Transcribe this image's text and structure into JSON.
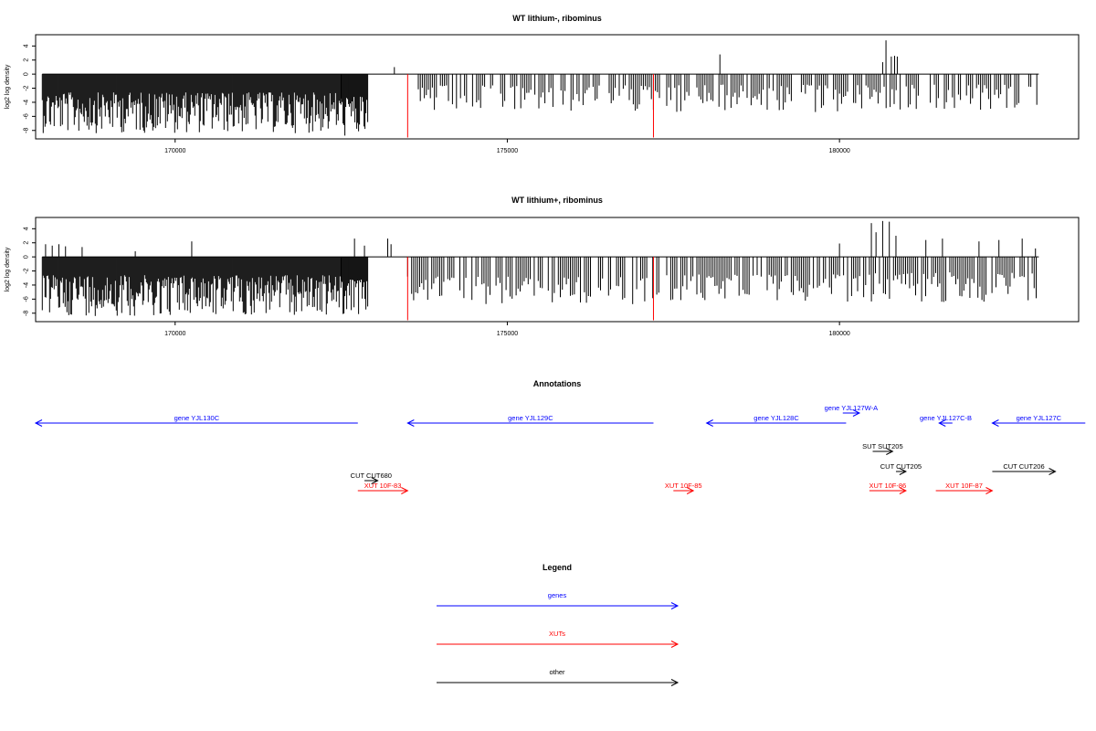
{
  "chart_data": [
    {
      "type": "bar",
      "title": "WT lithium-, ribominus",
      "ylabel": "log2 log density",
      "xlabel": "",
      "xlim": [
        167900,
        183600
      ],
      "ylim": [
        -9.2,
        5.6
      ],
      "x_ticks": [
        170000,
        175000,
        180000
      ],
      "y_ticks": [
        4,
        2,
        0,
        -2,
        -4,
        -6,
        -8
      ],
      "grid": false,
      "series": [
        {
          "color": "#000000",
          "segments": [
            {
              "x0": 168000,
              "x1": 172500,
              "min": -8.4,
              "max": -2.6
            },
            {
              "x0": 172500,
              "x1": 172900,
              "min": -9.0,
              "max": -3.2
            },
            {
              "x0": 173600,
              "x1": 177300,
              "min": -5.4,
              "max": -1.6
            },
            {
              "x0": 177400,
              "x1": 180350,
              "min": -5.6,
              "max": -1.5
            },
            {
              "x0": 180400,
              "x1": 183000,
              "min": -5.2,
              "max": -1.5
            }
          ],
          "values": [
            {
              "x": 173300,
              "y": 1.0
            },
            {
              "x": 178200,
              "y": 2.8
            },
            {
              "x": 180650,
              "y": 1.7
            },
            {
              "x": 180700,
              "y": 4.8
            },
            {
              "x": 180780,
              "y": 2.5
            },
            {
              "x": 180830,
              "y": 2.6
            },
            {
              "x": 180870,
              "y": 2.5
            }
          ]
        },
        {
          "color": "#ff0000",
          "values": [
            {
              "x": 173500,
              "y": -9.0
            },
            {
              "x": 177200,
              "y": -9.0
            }
          ]
        }
      ]
    },
    {
      "type": "bar",
      "title": "WT lithium+, ribominus",
      "ylabel": "log2 log density",
      "xlabel": "",
      "xlim": [
        167900,
        183600
      ],
      "ylim": [
        -9.2,
        5.6
      ],
      "x_ticks": [
        170000,
        175000,
        180000
      ],
      "y_ticks": [
        4,
        2,
        0,
        -2,
        -4,
        -6,
        -8
      ],
      "grid": false,
      "series": [
        {
          "color": "#000000",
          "segments": [
            {
              "x0": 168000,
              "x1": 172500,
              "min": -8.4,
              "max": -2.6
            },
            {
              "x0": 172500,
              "x1": 172900,
              "min": -8.2,
              "max": -3.2
            },
            {
              "x0": 173500,
              "x1": 177300,
              "min": -6.8,
              "max": -2.8
            },
            {
              "x0": 177400,
              "x1": 180400,
              "min": -6.4,
              "max": -2.5
            },
            {
              "x0": 180450,
              "x1": 183000,
              "min": -6.5,
              "max": -2.2
            }
          ],
          "values": [
            {
              "x": 168050,
              "y": 1.8
            },
            {
              "x": 168150,
              "y": 1.6
            },
            {
              "x": 168250,
              "y": 1.8
            },
            {
              "x": 168350,
              "y": 1.5
            },
            {
              "x": 168600,
              "y": 1.4
            },
            {
              "x": 169400,
              "y": 0.8
            },
            {
              "x": 170250,
              "y": 2.2
            },
            {
              "x": 172700,
              "y": 2.6
            },
            {
              "x": 172850,
              "y": 1.6
            },
            {
              "x": 173200,
              "y": 2.6
            },
            {
              "x": 173250,
              "y": 1.8
            },
            {
              "x": 180000,
              "y": 1.9
            },
            {
              "x": 180480,
              "y": 4.8
            },
            {
              "x": 180550,
              "y": 3.5
            },
            {
              "x": 180650,
              "y": 5.1
            },
            {
              "x": 180750,
              "y": 5.0
            },
            {
              "x": 180850,
              "y": 3.0
            },
            {
              "x": 181300,
              "y": 2.4
            },
            {
              "x": 181550,
              "y": 2.6
            },
            {
              "x": 182100,
              "y": 2.2
            },
            {
              "x": 182400,
              "y": 2.4
            },
            {
              "x": 182750,
              "y": 2.6
            },
            {
              "x": 182950,
              "y": 1.2
            }
          ]
        },
        {
          "color": "#ff0000",
          "values": [
            {
              "x": 173500,
              "y": -9.0
            },
            {
              "x": 177200,
              "y": -9.0
            }
          ]
        }
      ]
    }
  ],
  "annotations": {
    "title": "Annotations",
    "items": [
      {
        "label": "gene YJL130C",
        "start": 167370,
        "end": 172750,
        "strand": "-",
        "color": "#0000ff",
        "row": 0
      },
      {
        "label": "gene YJL129C",
        "start": 173500,
        "end": 177200,
        "strand": "-",
        "color": "#0000ff",
        "row": 0
      },
      {
        "label": "gene YJL128C",
        "start": 178000,
        "end": 180100,
        "strand": "-",
        "color": "#0000ff",
        "row": 0
      },
      {
        "label": "gene YJL127W-A",
        "start": 180050,
        "end": 180300,
        "strand": "+",
        "color": "#0000ff",
        "row": -1
      },
      {
        "label": "gene YJL127C-B",
        "start": 181500,
        "end": 181700,
        "strand": "-",
        "color": "#0000ff",
        "row": 0
      },
      {
        "label": "gene YJL127C",
        "start": 182300,
        "end": 183700,
        "strand": "-",
        "color": "#0000ff",
        "row": 0
      },
      {
        "label": "SUT SUT205",
        "start": 180500,
        "end": 180800,
        "strand": "+",
        "color": "#000000",
        "row": 1
      },
      {
        "label": "CUT CUT205",
        "start": 180850,
        "end": 181000,
        "strand": "+",
        "color": "#000000",
        "row": 2
      },
      {
        "label": "CUT CUT206",
        "start": 182300,
        "end": 183250,
        "strand": "+",
        "color": "#000000",
        "row": 2
      },
      {
        "label": "CUT CUT680",
        "start": 172850,
        "end": 173050,
        "strand": "+",
        "color": "#000000",
        "row": 3
      },
      {
        "label": "XUT 10F-83",
        "start": 172750,
        "end": 173500,
        "strand": "+",
        "color": "#ff0000",
        "row": 4
      },
      {
        "label": "XUT 10F-85",
        "start": 177500,
        "end": 177800,
        "strand": "+",
        "color": "#ff0000",
        "row": 4
      },
      {
        "label": "XUT 10F-86",
        "start": 180450,
        "end": 181000,
        "strand": "+",
        "color": "#ff0000",
        "row": 4
      },
      {
        "label": "XUT 10F-87",
        "start": 181450,
        "end": 182300,
        "strand": "+",
        "color": "#ff0000",
        "row": 4
      }
    ]
  },
  "legend": {
    "title": "Legend",
    "items": [
      {
        "label": "genes",
        "color": "#0000ff"
      },
      {
        "label": "XUTs",
        "color": "#ff0000"
      },
      {
        "label": "other",
        "color": "#000000"
      }
    ]
  }
}
